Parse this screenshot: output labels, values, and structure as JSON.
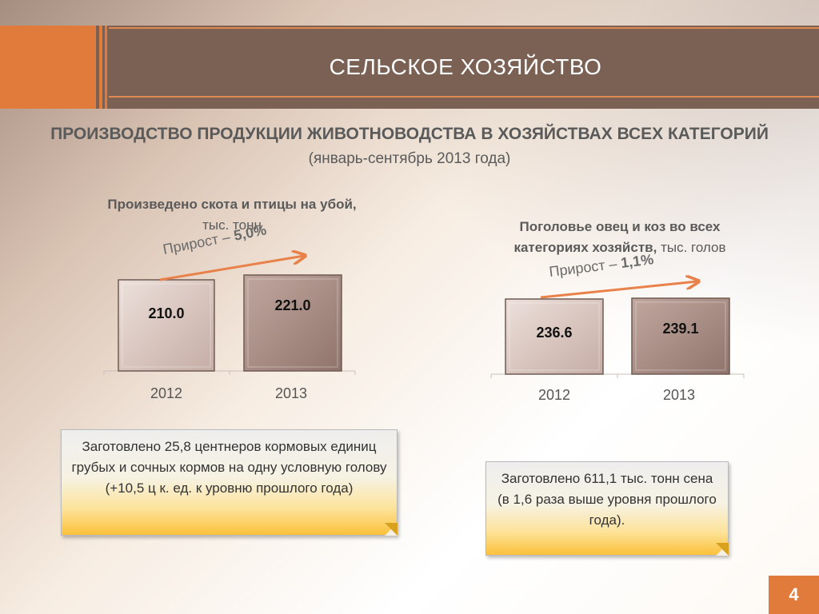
{
  "header": {
    "title": "СЕЛЬСКОЕ ХОЗЯЙСТВО"
  },
  "main_title": "ПРОИЗВОДСТВО ПРОДУКЦИИ ЖИВОТНОВОДСТВА В ХОЗЯЙСТВАХ ВСЕХ КАТЕГОРИЙ",
  "subtitle": "(январь-сентябрь 2013 года)",
  "left_chart": {
    "caption_bold": "Произведено скота и птицы на убой,",
    "caption_unit": "тыс. тонн",
    "growth_prefix": "Прирост – ",
    "growth_value": "5,0%",
    "note": "Заготовлено 25,8 центнеров кормовых единиц грубых и сочных кормов на одну условную голову (+10,5 ц к. ед. к уровню прошлого года)"
  },
  "right_chart": {
    "caption_bold_line1": "Поголовье овец и коз во всех",
    "caption_bold_line2": "категориях хозяйств,",
    "caption_unit": " тыс. голов",
    "growth_prefix": "Прирост – ",
    "growth_value": "1,1%",
    "note": "Заготовлено  611,1 тыс. тонн сена (в 1,6 раза выше уровня прошлого года)."
  },
  "page_number": "4",
  "colors": {
    "accent": "#e07b3c",
    "header": "#7b6154",
    "bar_2012": "#d8c4bd",
    "bar_2013": "#a98e86",
    "arrow": "#e8824a"
  },
  "chart_data": [
    {
      "type": "bar",
      "categories": [
        "2012",
        "2013"
      ],
      "values": [
        210.0,
        221.0
      ],
      "value_labels": [
        "210.0",
        "221.0"
      ],
      "title": "Произведено скота и птицы на убой, тыс. тонн",
      "annotation": "Прирост – 5,0%",
      "grid": false,
      "legend": "none"
    },
    {
      "type": "bar",
      "categories": [
        "2012",
        "2013"
      ],
      "values": [
        236.6,
        239.1
      ],
      "value_labels": [
        "236.6",
        "239.1"
      ],
      "title": "Поголовье овец и коз во всех категориях хозяйств, тыс. голов",
      "annotation": "Прирост – 1,1%",
      "grid": false,
      "legend": "none"
    }
  ]
}
